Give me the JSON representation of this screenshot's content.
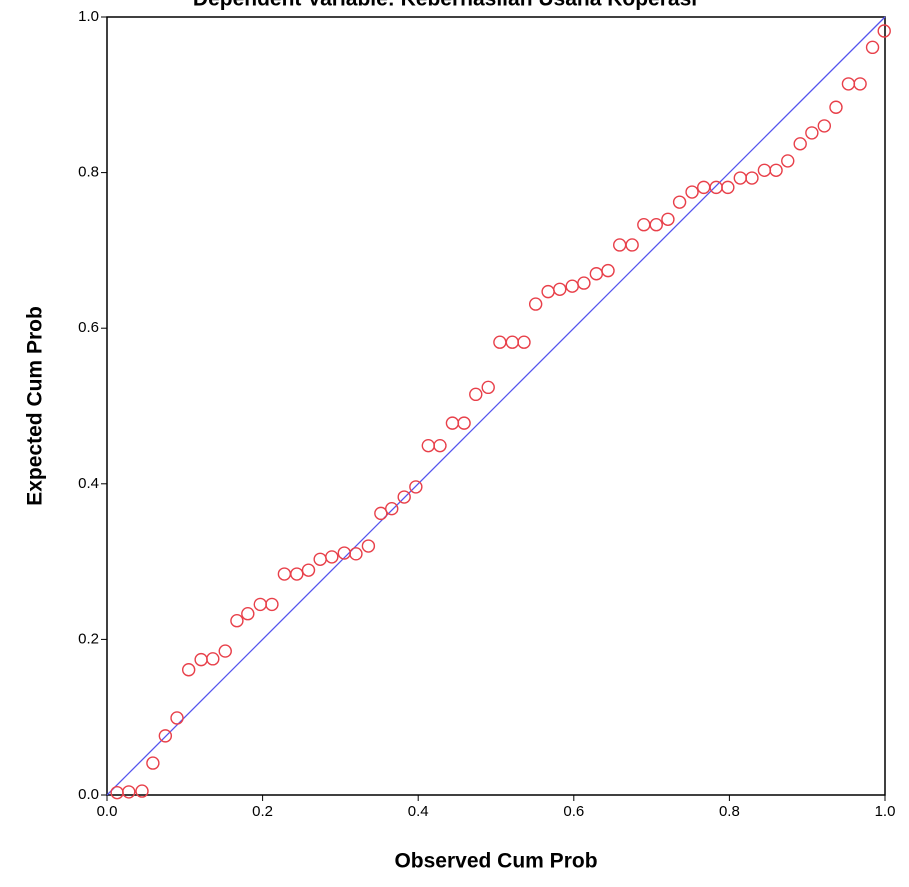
{
  "chart_data": {
    "type": "scatter",
    "title": "Dependent Variable: Keberhasilan Usaha Koperasi",
    "x_label": "Observed Cum Prob",
    "y_label": "Expected Cum Prob",
    "xlim": [
      0,
      1
    ],
    "ylim": [
      0,
      1
    ],
    "xticks": [
      {
        "value": 0,
        "label": "0.0"
      },
      {
        "value": 0.2,
        "label": "0.2"
      },
      {
        "value": 0.4,
        "label": "0.4"
      },
      {
        "value": 0.6,
        "label": "0.6"
      },
      {
        "value": 0.8,
        "label": "0.8"
      },
      {
        "value": 1,
        "label": "1.0"
      }
    ],
    "yticks": [
      {
        "value": 0,
        "label": "0.0"
      },
      {
        "value": 0.2,
        "label": "0.2"
      },
      {
        "value": 0.4,
        "label": "0.4"
      },
      {
        "value": 0.6,
        "label": "0.6"
      },
      {
        "value": 0.8,
        "label": "0.8"
      },
      {
        "value": 1,
        "label": "1.0"
      }
    ],
    "color": "#e8404a",
    "reference_line_color": "#5555ee",
    "x": [
      0.013,
      0.028,
      0.045,
      0.059,
      0.075,
      0.09,
      0.105,
      0.121,
      0.136,
      0.152,
      0.167,
      0.181,
      0.197,
      0.212,
      0.228,
      0.244,
      0.259,
      0.274,
      0.289,
      0.305,
      0.32,
      0.336,
      0.352,
      0.366,
      0.382,
      0.397,
      0.413,
      0.428,
      0.444,
      0.459,
      0.474,
      0.49,
      0.505,
      0.521,
      0.536,
      0.551,
      0.567,
      0.582,
      0.598,
      0.613,
      0.629,
      0.644,
      0.659,
      0.675,
      0.69,
      0.706,
      0.721,
      0.736,
      0.752,
      0.767,
      0.783,
      0.798,
      0.814,
      0.829,
      0.845,
      0.86,
      0.875,
      0.891,
      0.906,
      0.922,
      0.937,
      0.953,
      0.968,
      0.984,
      0.999
    ],
    "values": [
      0.003,
      0.004,
      0.005,
      0.041,
      0.076,
      0.099,
      0.161,
      0.174,
      0.175,
      0.185,
      0.224,
      0.233,
      0.245,
      0.245,
      0.284,
      0.284,
      0.289,
      0.303,
      0.306,
      0.311,
      0.31,
      0.32,
      0.362,
      0.368,
      0.383,
      0.396,
      0.449,
      0.449,
      0.478,
      0.478,
      0.515,
      0.524,
      0.582,
      0.582,
      0.582,
      0.631,
      0.647,
      0.65,
      0.654,
      0.658,
      0.67,
      0.674,
      0.707,
      0.707,
      0.733,
      0.733,
      0.74,
      0.762,
      0.775,
      0.781,
      0.781,
      0.781,
      0.793,
      0.793,
      0.803,
      0.803,
      0.815,
      0.837,
      0.851,
      0.86,
      0.884,
      0.914,
      0.914,
      0.961,
      0.982
    ]
  }
}
